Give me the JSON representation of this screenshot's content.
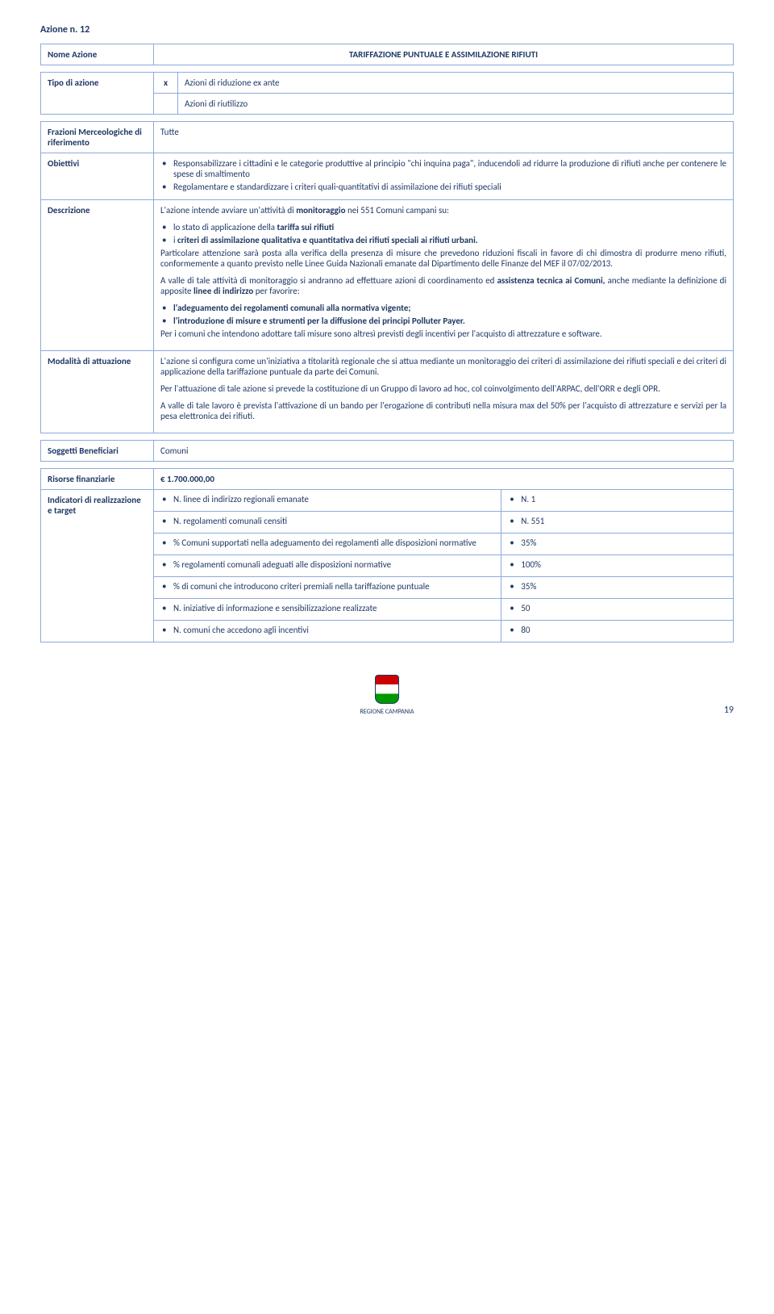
{
  "pageTitle": "Azione n. 12",
  "header": {
    "label": "Nome Azione",
    "title": "TARIFFAZIONE PUNTUALE E ASSIMILAZIONE RIFIUTI"
  },
  "tipo": {
    "label": "Tipo di azione",
    "rows": [
      {
        "mark": "x",
        "text": "Azioni di riduzione ex ante"
      },
      {
        "mark": "",
        "text": "Azioni di riutilizzo"
      }
    ]
  },
  "frazioni": {
    "label": "Frazioni Merceologiche di riferimento",
    "value": "Tutte"
  },
  "obiettivi": {
    "label": "Obiettivi",
    "items": [
      "Responsabilizzare i cittadini e le categorie produttive al principio \"chi inquina paga\", inducendoli ad ridurre la produzione di rifiuti anche per contenere le spese di smaltimento",
      "Regolamentare e standardizzare i criteri quali-quantitativi di assimilazione dei rifiuti speciali"
    ]
  },
  "descrizione": {
    "label": "Descrizione",
    "intro": "L'azione intende avviare un'attività di ",
    "introBold": "monitoraggio",
    "introAfter": " nei 551 Comuni campani su:",
    "introItems": [
      {
        "pre": "lo stato di applicazione della ",
        "bold": "tariffa sui rifiuti",
        "post": ""
      },
      {
        "pre": "i ",
        "bold": "criteri di assimilazione qualitativa e quantitativa dei rifiuti speciali ai rifiuti urbani.",
        "post": ""
      }
    ],
    "p1": "Particolare attenzione sarà posta alla verifica della presenza di misure che prevedono riduzioni fiscali in favore di chi dimostra di produrre meno rifiuti, conformemente a quanto previsto nelle Linee Guida Nazionali emanate dal Dipartimento delle Finanze del MEF il 07/02/2013.",
    "p2pre": "A valle di tale attività di monitoraggio si andranno ad effettuare azioni di coordinamento ed ",
    "p2b1": "assistenza tecnica ai Comuni,",
    "p2mid": " anche mediante la definizione di apposite ",
    "p2b2": "linee di indirizzo",
    "p2post": " per favorire:",
    "p2items": [
      "l'adeguamento dei regolamenti comunali alla normativa vigente;",
      "l'introduzione di misure e strumenti per la diffusione dei principi Polluter Payer."
    ],
    "p3": "Per i comuni che intendono adottare tali misure sono altresì previsti degli incentivi per l'acquisto di attrezzature e software."
  },
  "modalita": {
    "label": "Modalità di attuazione",
    "p1": "L'azione si configura come un'iniziativa a titolarità regionale che si attua mediante un monitoraggio dei criteri di assimilazione dei rifiuti speciali e dei criteri di applicazione della tariffazione puntuale da parte dei Comuni.",
    "p2": "Per l'attuazione di tale azione si prevede la costituzione di un Gruppo di lavoro ad hoc, col coinvolgimento dell'ARPAC, dell'ORR e degli OPR.",
    "p3": "A valle di tale lavoro è prevista l'attivazione di un bando per l'erogazione di contributi nella misura max del 50% per l'acquisto di attrezzature e servizi per la pesa elettronica dei rifiuti."
  },
  "soggetti": {
    "label": "Soggetti Beneficiari",
    "value": "Comuni"
  },
  "risorse": {
    "label": "Risorse finanziarie",
    "value": "€ 1.700.000,00"
  },
  "indicatori": {
    "label": "Indicatori di realizzazione e target",
    "rows": [
      {
        "name": "N. linee di indirizzo regionali emanate",
        "val": "N. 1"
      },
      {
        "name": "N. regolamenti comunali censiti",
        "val": "N. 551"
      },
      {
        "name": "% Comuni supportati nella adeguamento dei regolamenti alle disposizioni normative",
        "val": "35%"
      },
      {
        "name": "% regolamenti comunali adeguati alle disposizioni normative",
        "val": "100%"
      },
      {
        "name": "% di comuni che introducono criteri premiali nella tariffazione puntuale",
        "val": "35%"
      },
      {
        "name": "N. iniziative di informazione e sensibilizzazione realizzate",
        "val": "50"
      },
      {
        "name": "N. comuni che accedono agli incentivi",
        "val": "80"
      }
    ]
  },
  "footer": {
    "org": "REGIONE CAMPANIA",
    "page": "19"
  }
}
